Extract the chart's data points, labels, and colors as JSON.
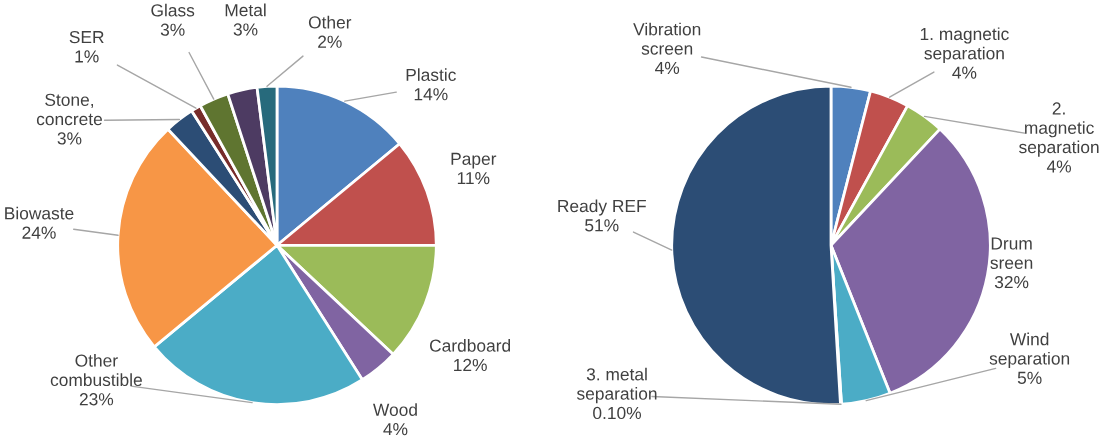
{
  "chart_data": [
    {
      "type": "pie",
      "categories": [
        "Plastic",
        "Paper",
        "Cardboard",
        "Wood",
        "Other\ncombustible",
        "Biowaste",
        "Stone,\nconcrete",
        "SER",
        "Glass",
        "Metal",
        "Other"
      ],
      "values": [
        14,
        11,
        12,
        4,
        23,
        24,
        3,
        1,
        3,
        3,
        2
      ],
      "value_labels": [
        "14%",
        "11%",
        "12%",
        "4%",
        "23%",
        "24%",
        "3%",
        "1%",
        "3%",
        "3%",
        "2%"
      ],
      "colors": [
        "#4f81bd",
        "#c0504d",
        "#9bbb59",
        "#8064a2",
        "#4bacc6",
        "#f79646",
        "#2c4d75",
        "#772c2a",
        "#5f7530",
        "#4d3b62",
        "#276a7c"
      ]
    },
    {
      "type": "pie",
      "categories": [
        "Vibration\nscreen",
        "1. magnetic\nseparation",
        "2.\nmagnetic\nseparation",
        "Drum\nsreen",
        "Wind\nseparation",
        "3. metal\nseparation",
        "Ready REF"
      ],
      "values": [
        4,
        4,
        4,
        32,
        5,
        0.1,
        51
      ],
      "value_labels": [
        "4%",
        "4%",
        "4%",
        "32%",
        "5%",
        "0.10%",
        "51%"
      ],
      "colors": [
        "#4f81bd",
        "#c0504d",
        "#9bbb59",
        "#8064a2",
        "#4bacc6",
        "#f79646",
        "#2c4d75"
      ]
    }
  ]
}
